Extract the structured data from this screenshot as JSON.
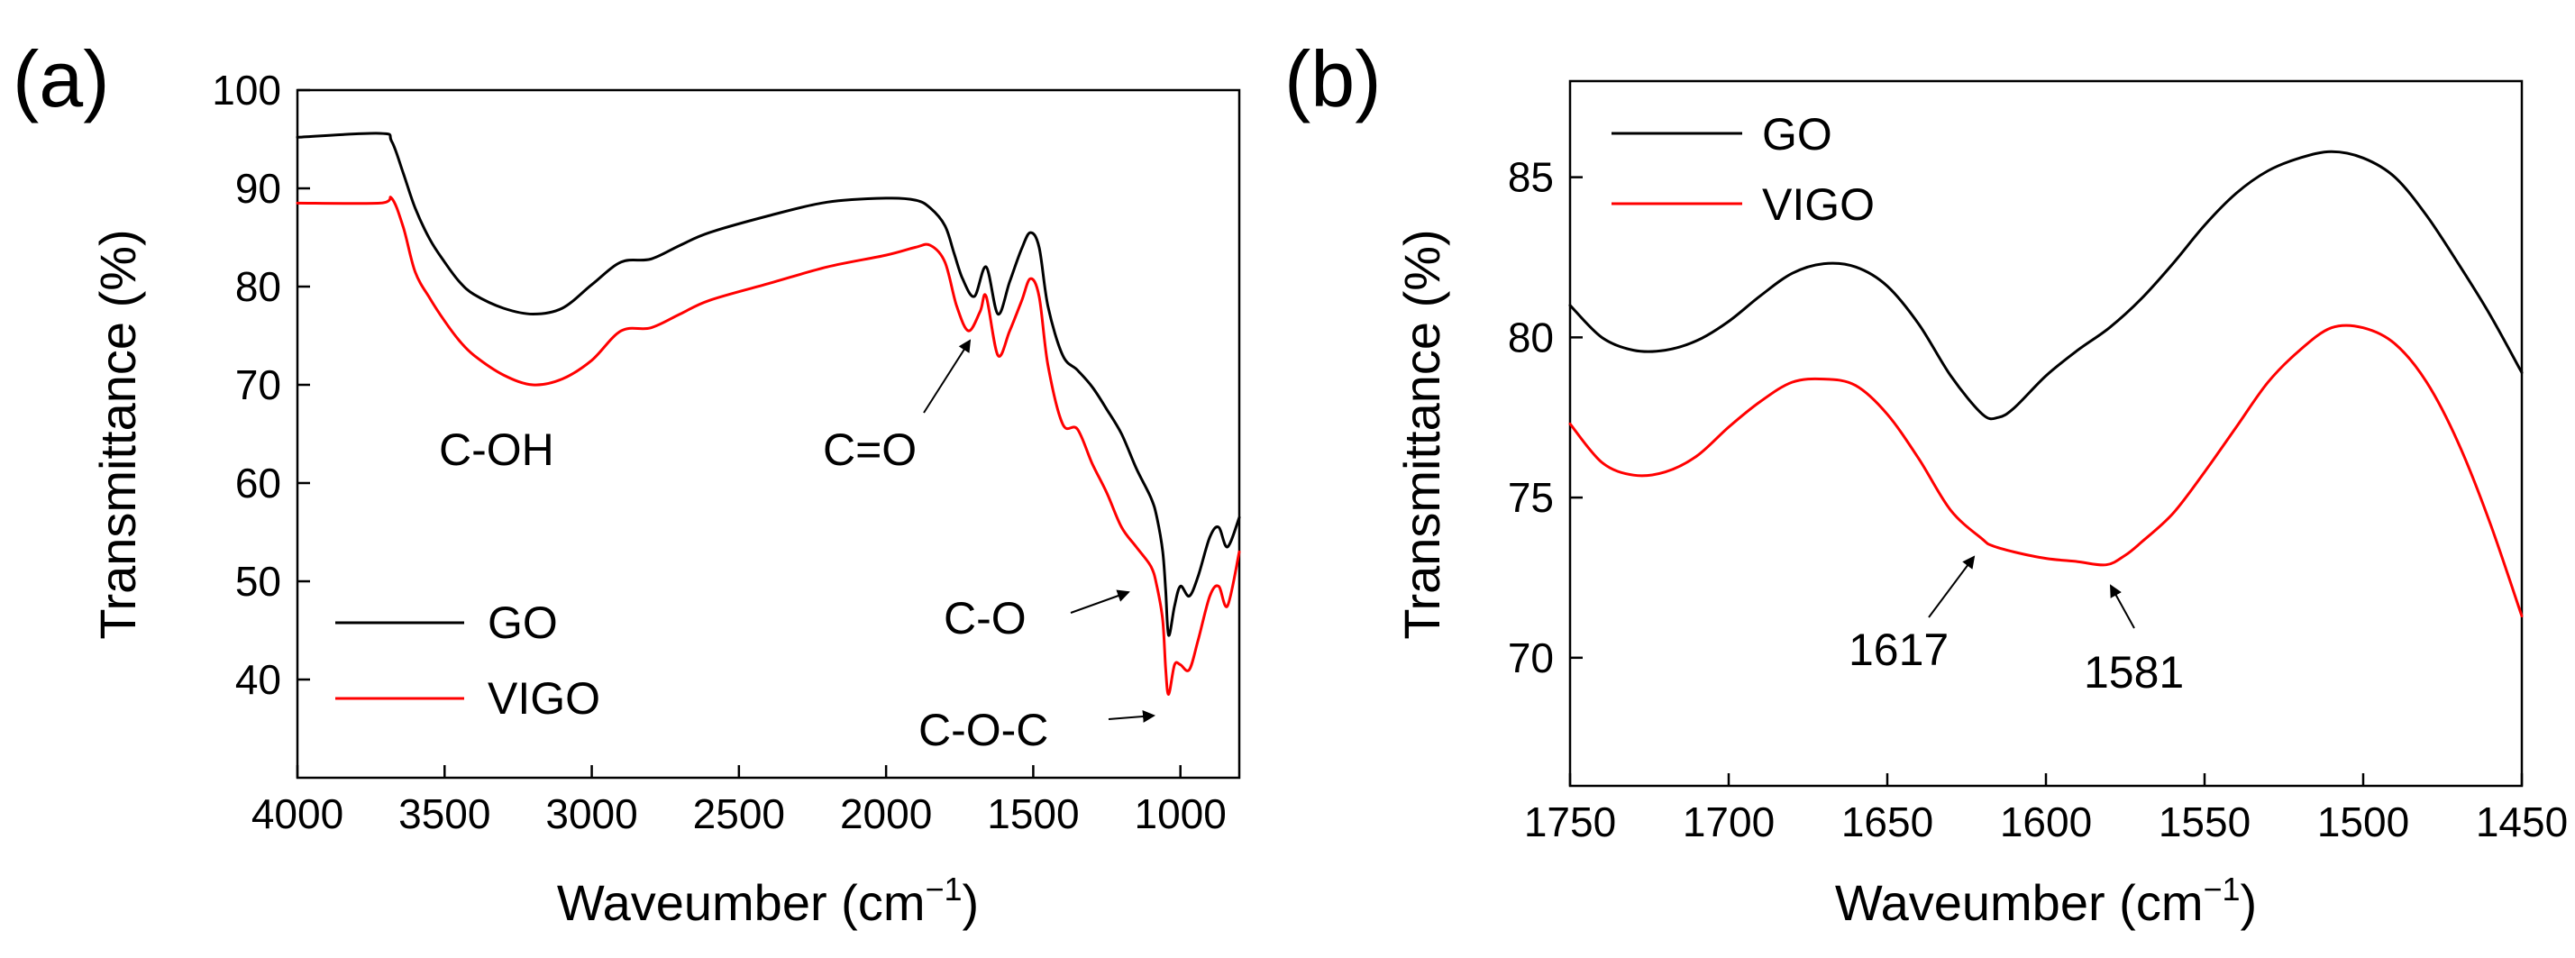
{
  "chart_data": [
    {
      "panel_label": "(a)",
      "type": "line",
      "xlabel": "Waveumber (cm",
      "xlabel_sup": "−1",
      "xlabel_tail": ")",
      "ylabel": "Transmittance (%)",
      "xlim": [
        4000,
        800
      ],
      "ylim": [
        30,
        100
      ],
      "xticks": [
        4000,
        3500,
        3000,
        2500,
        2000,
        1500,
        1000
      ],
      "yticks": [
        40,
        50,
        60,
        70,
        80,
        90,
        100
      ],
      "legend": {
        "position": "lower-left",
        "entries": [
          "GO",
          "VIGO"
        ]
      },
      "series": [
        {
          "name": "GO",
          "color": "#000000",
          "x": [
            4000,
            3720,
            3680,
            3640,
            3600,
            3550,
            3500,
            3450,
            3400,
            3300,
            3200,
            3100,
            3000,
            2900,
            2800,
            2700,
            2600,
            2400,
            2200,
            2000,
            1900,
            1850,
            1800,
            1770,
            1740,
            1700,
            1660,
            1620,
            1580,
            1540,
            1510,
            1480,
            1450,
            1400,
            1350,
            1300,
            1250,
            1200,
            1150,
            1100,
            1080,
            1060,
            1050,
            1040,
            1020,
            1000,
            970,
            940,
            900,
            870,
            840,
            800
          ],
          "y": [
            95.2,
            95.6,
            94.8,
            91.5,
            88.0,
            84.8,
            82.5,
            80.5,
            79.2,
            77.8,
            77.2,
            77.8,
            80.2,
            82.5,
            82.8,
            84.2,
            85.5,
            87.2,
            88.6,
            89.0,
            88.8,
            88.0,
            86.2,
            83.5,
            80.8,
            79.0,
            82.0,
            77.2,
            80.5,
            83.8,
            85.5,
            84.0,
            78.0,
            73.0,
            71.5,
            69.8,
            67.5,
            65.0,
            61.5,
            58.5,
            56.5,
            53.0,
            49.0,
            44.5,
            47.5,
            49.5,
            48.5,
            50.5,
            54.5,
            55.5,
            53.5,
            56.5
          ]
        },
        {
          "name": "VIGO",
          "color": "#ff0000",
          "x": [
            4000,
            3720,
            3680,
            3640,
            3600,
            3550,
            3500,
            3450,
            3400,
            3300,
            3200,
            3100,
            3000,
            2900,
            2800,
            2700,
            2600,
            2400,
            2200,
            2000,
            1900,
            1850,
            1800,
            1760,
            1720,
            1680,
            1660,
            1620,
            1580,
            1540,
            1510,
            1480,
            1450,
            1400,
            1350,
            1300,
            1250,
            1200,
            1150,
            1100,
            1080,
            1060,
            1050,
            1040,
            1020,
            1000,
            970,
            940,
            900,
            870,
            840,
            800
          ],
          "y": [
            88.5,
            88.5,
            89.0,
            86.0,
            81.5,
            78.8,
            76.5,
            74.5,
            73.0,
            71.0,
            70.0,
            70.6,
            72.5,
            75.5,
            75.8,
            77.2,
            78.6,
            80.3,
            82.0,
            83.2,
            84.0,
            84.2,
            82.5,
            78.0,
            75.5,
            77.5,
            79.0,
            73.0,
            75.5,
            78.5,
            80.8,
            79.0,
            72.0,
            66.0,
            65.5,
            62.0,
            59.0,
            55.5,
            53.5,
            51.5,
            49.5,
            46.0,
            41.0,
            38.5,
            41.5,
            41.5,
            41.0,
            44.0,
            48.5,
            49.5,
            47.5,
            53.0
          ]
        }
      ],
      "annotations": [
        {
          "text": "C-OH"
        },
        {
          "text": "C=O"
        },
        {
          "text": "C-O"
        },
        {
          "text": "C-O-C"
        }
      ]
    },
    {
      "panel_label": "(b)",
      "type": "line",
      "xlabel": "Waveumber (cm",
      "xlabel_sup": "−1",
      "xlabel_tail": ")",
      "ylabel": "Transmittance (%)",
      "xlim": [
        1750,
        1450
      ],
      "ylim": [
        66,
        88
      ],
      "xticks": [
        1750,
        1700,
        1650,
        1600,
        1550,
        1500,
        1450
      ],
      "yticks": [
        70,
        75,
        80,
        85
      ],
      "legend": {
        "position": "top-left",
        "entries": [
          "GO",
          "VIGO"
        ]
      },
      "series": [
        {
          "name": "GO",
          "color": "#000000",
          "x": [
            1750,
            1740,
            1730,
            1720,
            1710,
            1700,
            1690,
            1680,
            1670,
            1660,
            1650,
            1640,
            1630,
            1620,
            1615,
            1610,
            1600,
            1590,
            1580,
            1570,
            1560,
            1550,
            1540,
            1530,
            1520,
            1510,
            1500,
            1490,
            1480,
            1470,
            1460,
            1450
          ],
          "y": [
            81.0,
            80.0,
            79.6,
            79.6,
            79.9,
            80.5,
            81.3,
            82.0,
            82.3,
            82.2,
            81.6,
            80.4,
            78.8,
            77.6,
            77.5,
            77.8,
            78.8,
            79.6,
            80.3,
            81.2,
            82.3,
            83.5,
            84.5,
            85.2,
            85.6,
            85.8,
            85.6,
            85.0,
            83.8,
            82.3,
            80.7,
            78.9
          ]
        },
        {
          "name": "VIGO",
          "color": "#ff0000",
          "x": [
            1750,
            1740,
            1730,
            1720,
            1710,
            1700,
            1690,
            1680,
            1670,
            1660,
            1650,
            1640,
            1630,
            1620,
            1617,
            1610,
            1600,
            1590,
            1581,
            1575,
            1570,
            1560,
            1550,
            1540,
            1530,
            1520,
            1510,
            1500,
            1490,
            1480,
            1470,
            1460,
            1450
          ],
          "y": [
            77.3,
            76.1,
            75.7,
            75.8,
            76.3,
            77.2,
            78.0,
            78.6,
            78.7,
            78.5,
            77.6,
            76.2,
            74.6,
            73.7,
            73.5,
            73.3,
            73.1,
            73.0,
            72.9,
            73.2,
            73.6,
            74.5,
            75.8,
            77.2,
            78.6,
            79.6,
            80.3,
            80.3,
            79.8,
            78.6,
            76.7,
            74.2,
            71.3
          ]
        }
      ],
      "annotations": [
        {
          "text": "1617"
        },
        {
          "text": "1581"
        }
      ]
    }
  ]
}
